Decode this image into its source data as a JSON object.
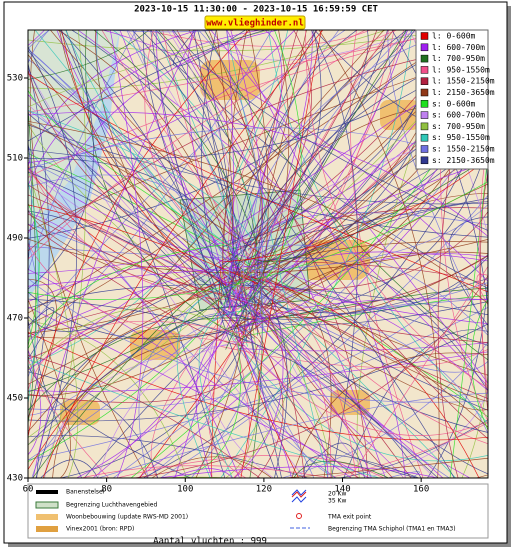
{
  "header": {
    "title": "2023-10-15 11:30:00 - 2023-10-15 16:59:59 CET",
    "site": "www.vlieghinder.nl"
  },
  "map": {
    "xlim": [
      60,
      177
    ],
    "ylim": [
      430,
      542
    ],
    "xticks": [
      60,
      80,
      100,
      120,
      140,
      160
    ],
    "yticks": [
      430,
      450,
      470,
      490,
      510,
      530
    ]
  },
  "legend": [
    {
      "label": "l: 0-600m",
      "color": "#e00000"
    },
    {
      "label": "l: 600-700m",
      "color": "#a020f0"
    },
    {
      "label": "l: 700-950m",
      "color": "#207020"
    },
    {
      "label": "l: 950-1550m",
      "color": "#f0508a"
    },
    {
      "label": "l: 1550-2150m",
      "color": "#b02040"
    },
    {
      "label": "l: 2150-3650m",
      "color": "#903818"
    },
    {
      "label": "s: 0-600m",
      "color": "#20e020"
    },
    {
      "label": "s: 600-700m",
      "color": "#c080f0"
    },
    {
      "label": "s: 700-950m",
      "color": "#90c040"
    },
    {
      "label": "s: 950-1550m",
      "color": "#30c8b8"
    },
    {
      "label": "s: 1550-2150m",
      "color": "#7070e0"
    },
    {
      "label": "s: 2150-3650m",
      "color": "#303890"
    }
  ],
  "key": {
    "left": [
      "Banenstelsel",
      "Begrenzing Luchthavengebied",
      "Woonbebouwing (update RWS-MD 2001)",
      "Vinex2001 (bron: RPD)"
    ],
    "noise": [
      "20 Kw",
      "35 Kw"
    ],
    "exit": "TMA exit point",
    "tma": "Begrenzing TMA Schiphol  (TMA1 en TMA3)"
  },
  "footer": "Aantal vluchten : 999"
}
